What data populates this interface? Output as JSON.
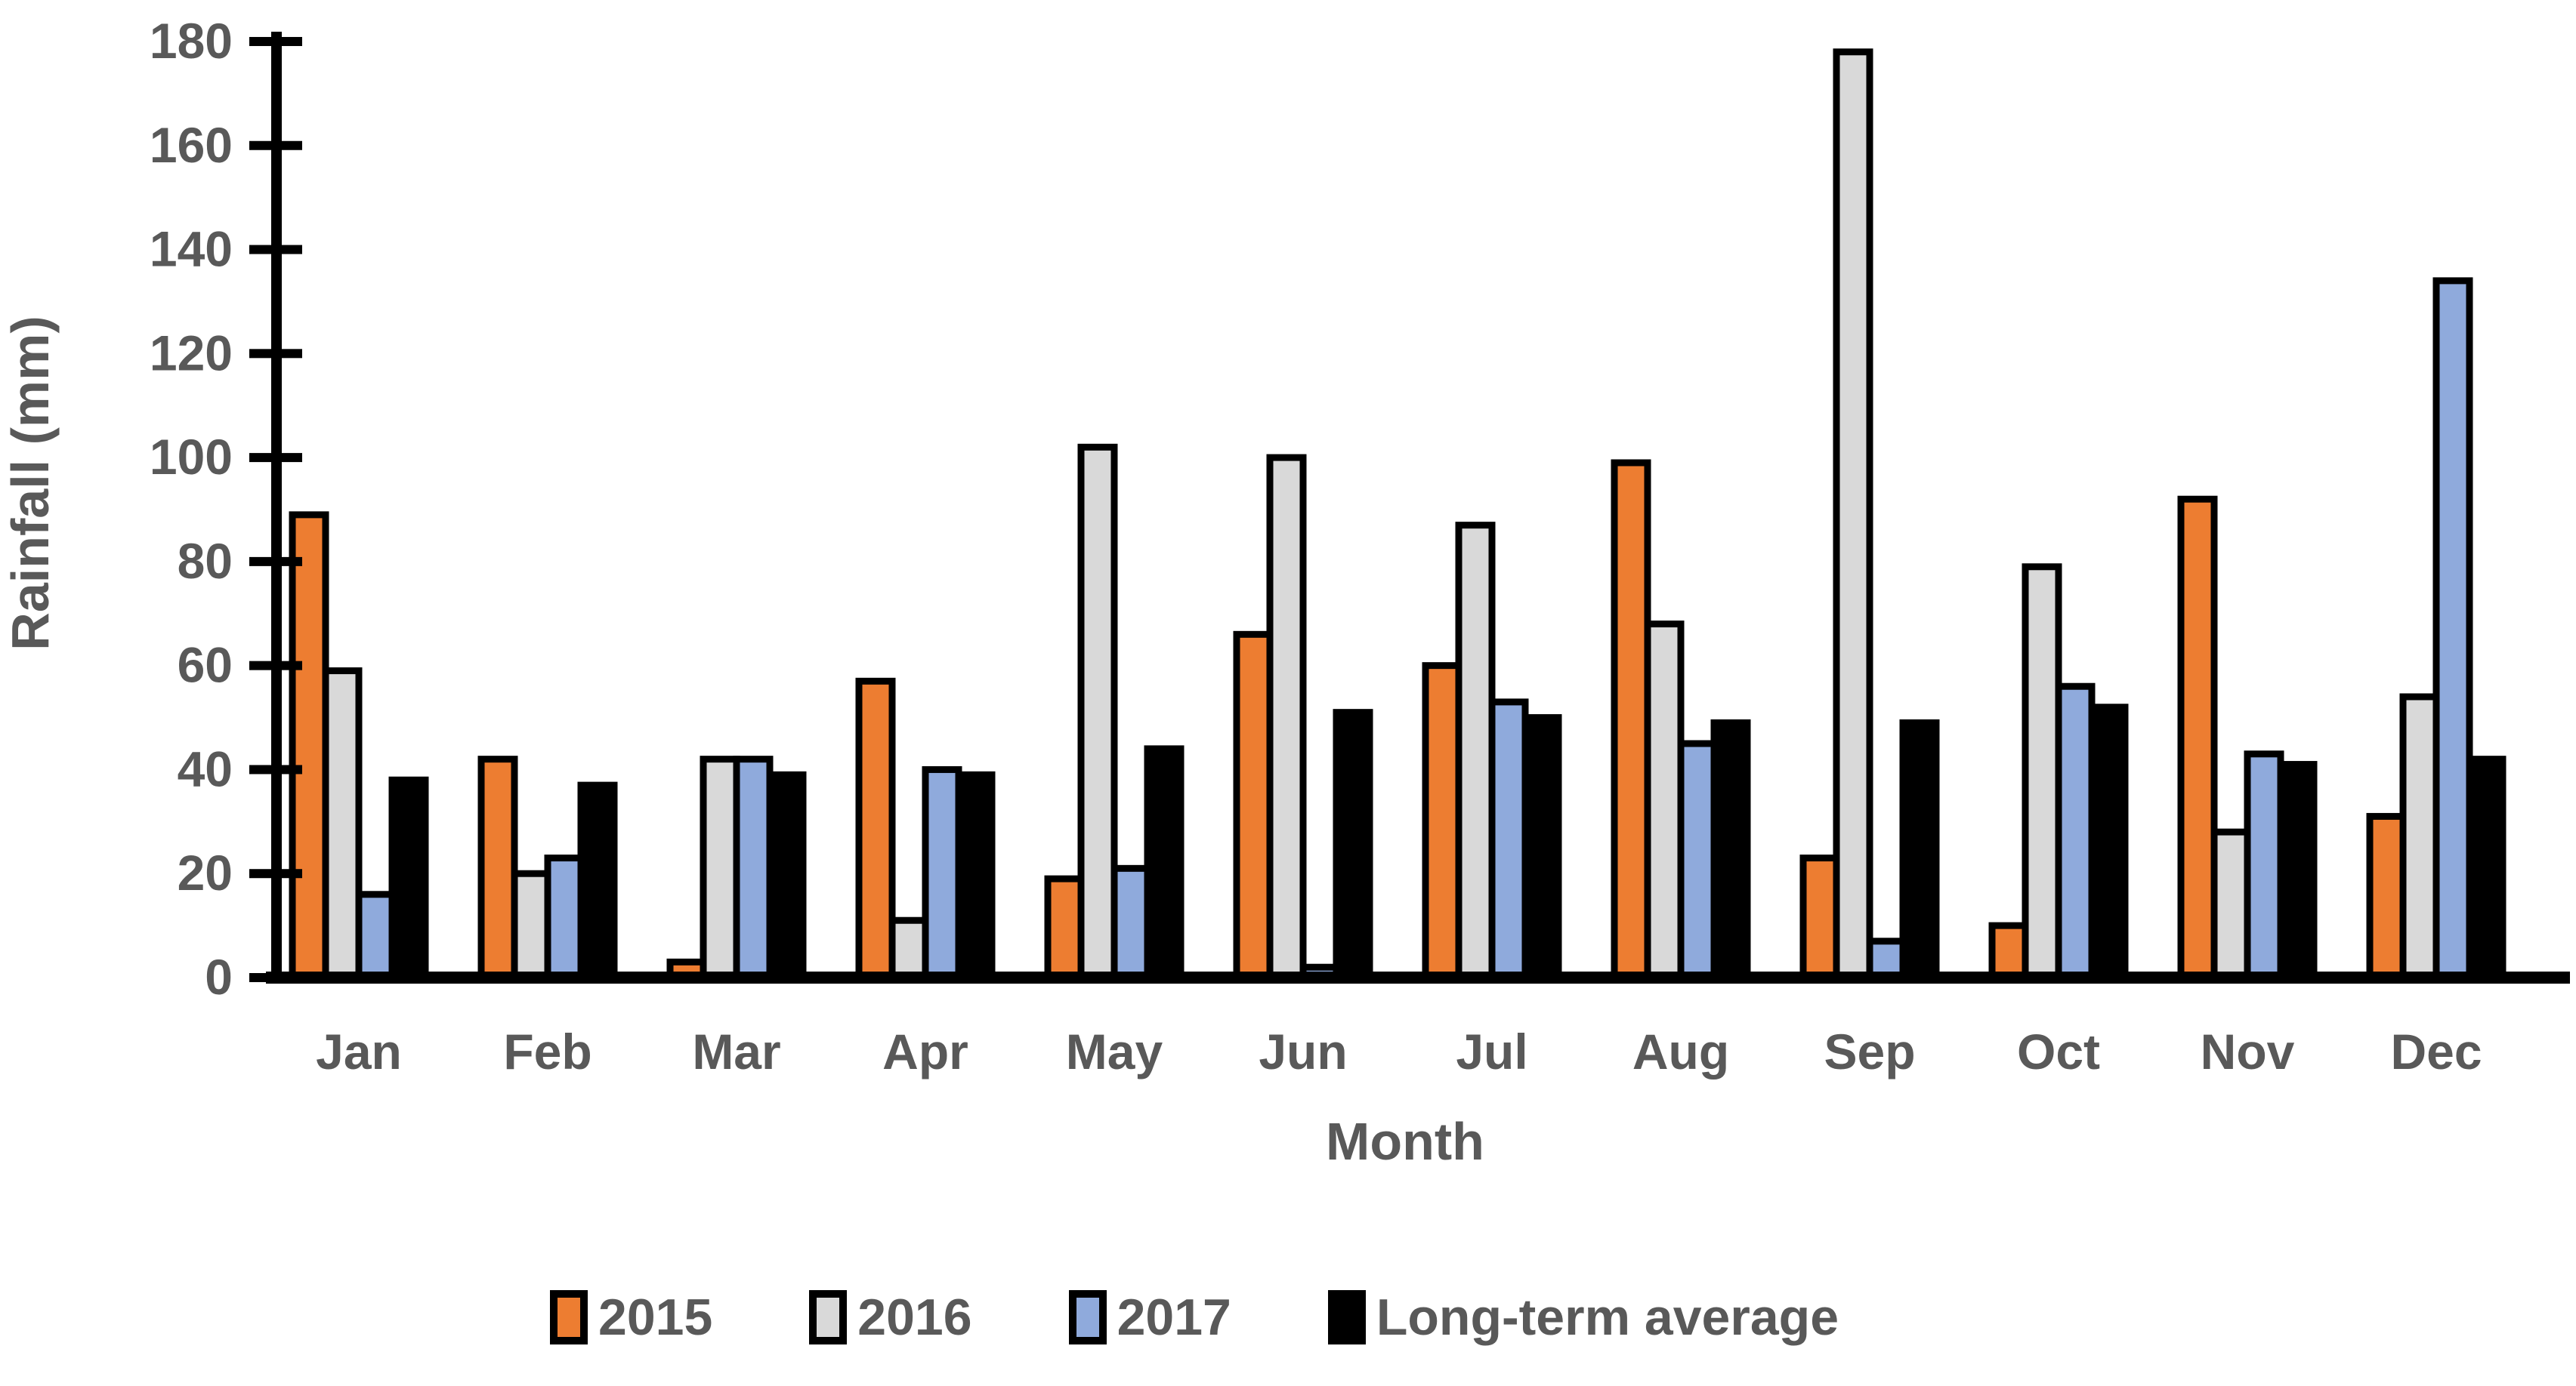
{
  "chart_data": {
    "type": "bar",
    "title": "",
    "xlabel": "Month",
    "ylabel": "Rainfall (mm)",
    "categories": [
      "Jan",
      "Feb",
      "Mar",
      "Apr",
      "May",
      "Jun",
      "Jul",
      "Aug",
      "Sep",
      "Oct",
      "Nov",
      "Dec"
    ],
    "series": [
      {
        "name": "2015",
        "color": "#ED7D31",
        "values": [
          89,
          42,
          3,
          57,
          19,
          66,
          60,
          99,
          23,
          10,
          92,
          31
        ]
      },
      {
        "name": "2016",
        "color": "#D9D9D9",
        "values": [
          59,
          20,
          42,
          11,
          102,
          100,
          87,
          68,
          178,
          79,
          28,
          54
        ]
      },
      {
        "name": "2017",
        "color": "#8FAADC",
        "values": [
          16,
          23,
          42,
          40,
          21,
          2,
          53,
          45,
          7,
          56,
          43,
          134
        ]
      },
      {
        "name": "Long-term average",
        "color": "#000000",
        "values": [
          38,
          37,
          39,
          39,
          44,
          51,
          50,
          49,
          49,
          52,
          41,
          42
        ]
      }
    ],
    "ylim": [
      0,
      180
    ],
    "ytick_step": 20,
    "ytick_labels": [
      "0",
      "20",
      "40",
      "60",
      "80",
      "100",
      "120",
      "140",
      "160",
      "180"
    ],
    "grid": false,
    "legend_position": "bottom",
    "bar_outline_color": "#000000",
    "axis_color": "#000000",
    "text_color": "#595959"
  }
}
